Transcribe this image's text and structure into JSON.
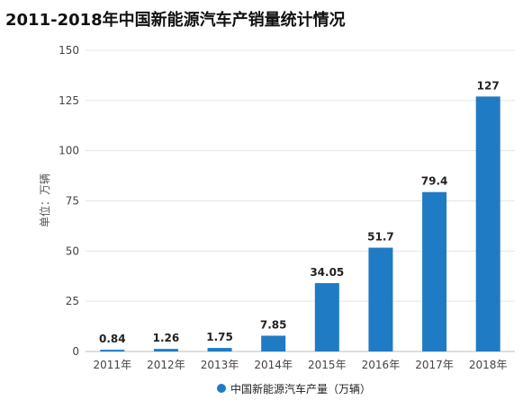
{
  "chart_data": {
    "type": "bar",
    "title": "2011-2018年中国新能源汽车产销量统计情况",
    "categories": [
      "2011年",
      "2012年",
      "2013年",
      "2014年",
      "2015年",
      "2016年",
      "2017年",
      "2018年"
    ],
    "series": [
      {
        "name": "中国新能源汽车产量（万辆）",
        "values": [
          0.84,
          1.26,
          1.75,
          7.85,
          34.05,
          51.7,
          79.4,
          127
        ],
        "labels": [
          "0.84",
          "1.26",
          "1.75",
          "7.85",
          "34.05",
          "51.7",
          "79.4",
          "127"
        ],
        "color": "#1f7bc4"
      }
    ],
    "ylabel": "单位：万辆",
    "xlabel": "",
    "ylim": [
      0,
      150
    ],
    "yticks": [
      "0",
      "25",
      "50",
      "75",
      "100",
      "125",
      "150"
    ],
    "grid": true,
    "legend_position": "bottom"
  }
}
